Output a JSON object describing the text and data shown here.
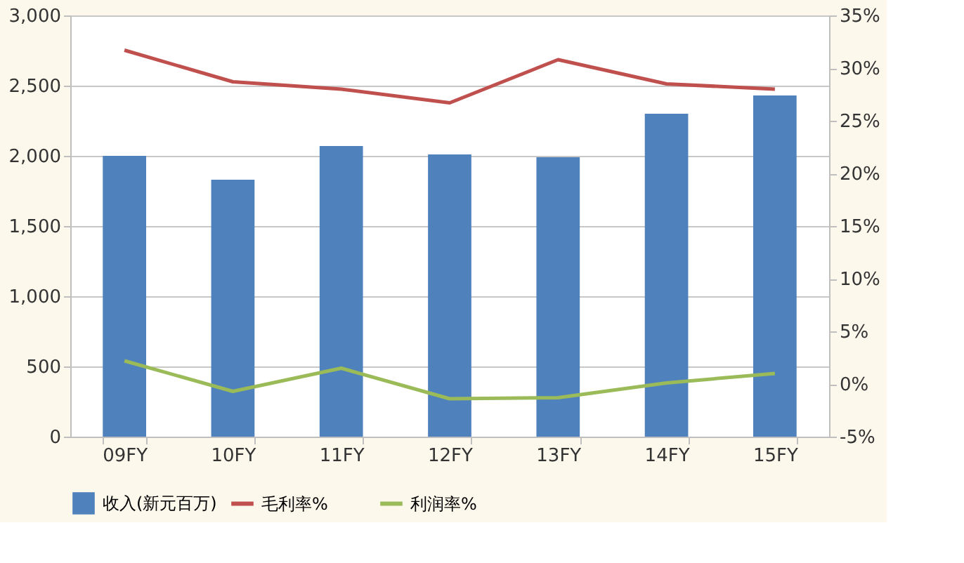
{
  "chart_data": {
    "type": "bar",
    "categories": [
      "09FY",
      "10FY",
      "11FY",
      "12FY",
      "13FY",
      "14FY",
      "15FY"
    ],
    "series": [
      {
        "name": "收入(新元百万)",
        "color": "#4f81bd",
        "values": [
          2000,
          1830,
          2070,
          2010,
          1990,
          2300,
          2430
        ]
      },
      {
        "name": "毛利率%",
        "type": "line",
        "axis": "y2",
        "color": "#c0504d",
        "values": [
          31.7,
          28.7,
          28.0,
          26.7,
          30.8,
          28.5,
          28.0
        ]
      },
      {
        "name": "利润率%",
        "type": "line",
        "axis": "y2",
        "color": "#9bbb59",
        "values": [
          2.2,
          -0.7,
          1.5,
          -1.4,
          -1.3,
          0.1,
          1.0
        ]
      }
    ],
    "ylim": [
      0,
      3000
    ],
    "yticks": [
      {
        "value": 0,
        "label": "0"
      },
      {
        "value": 500,
        "label": "500"
      },
      {
        "value": 1000,
        "label": "1,000"
      },
      {
        "value": 1500,
        "label": "1,500"
      },
      {
        "value": 2000,
        "label": "2,000"
      },
      {
        "value": 2500,
        "label": "2,500"
      },
      {
        "value": 3000,
        "label": "3,000"
      }
    ],
    "y2lim": [
      -5,
      35
    ],
    "y2ticks": [
      {
        "value": -5,
        "label": "-5%"
      },
      {
        "value": 0,
        "label": "0%"
      },
      {
        "value": 5,
        "label": "5%"
      },
      {
        "value": 10,
        "label": "10%"
      },
      {
        "value": 15,
        "label": "15%"
      },
      {
        "value": 20,
        "label": "20%"
      },
      {
        "value": 25,
        "label": "25%"
      },
      {
        "value": 30,
        "label": "30%"
      },
      {
        "value": 35,
        "label": "35%"
      }
    ],
    "grid": "y",
    "legend": "bottom"
  }
}
